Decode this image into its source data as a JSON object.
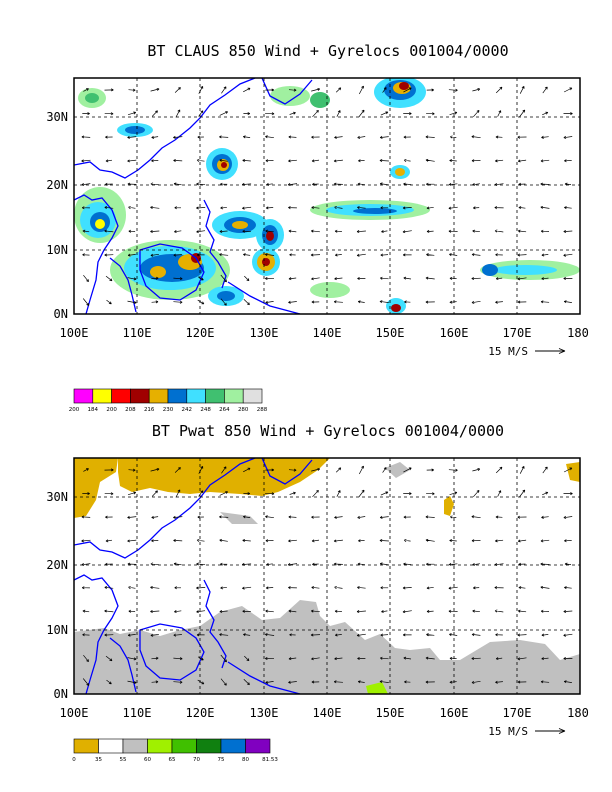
{
  "panels": [
    {
      "id": "claus",
      "title": "BT CLAUS 850 Wind + Gyrelocs 001004/0000",
      "x_ticks": [
        "100E",
        "110E",
        "120E",
        "130E",
        "140E",
        "150E",
        "160E",
        "170E",
        "180"
      ],
      "y_ticks": [
        "0N",
        "10N",
        "20N",
        "30N"
      ],
      "ref_vector_label": "15 M/S",
      "colorbar_labels": [
        "200",
        "184",
        "200",
        "208",
        "216",
        "230",
        "242",
        "248",
        "264",
        "280",
        "288"
      ],
      "colorbar_colors": [
        "#ff00ff",
        "#ffff00",
        "#ff0000",
        "#a00000",
        "#e6b000",
        "#0070d0",
        "#40e0ff",
        "#40c070",
        "#a0f0a0",
        "#e0e0e0"
      ]
    },
    {
      "id": "pwat",
      "title": "BT Pwat 850 Wind + Gyrelocs 001004/0000",
      "x_ticks": [
        "100E",
        "110E",
        "120E",
        "130E",
        "140E",
        "150E",
        "160E",
        "170E",
        "180"
      ],
      "y_ticks": [
        "0N",
        "10N",
        "20N",
        "30N"
      ],
      "ref_vector_label": "15 M/S",
      "colorbar_labels": [
        "0",
        "35",
        "55",
        "60",
        "65",
        "70",
        "75",
        "80",
        "81.53"
      ],
      "colorbar_colors": [
        "#e0b000",
        "#ffffff",
        "#c0c0c0",
        "#a0f000",
        "#40c000",
        "#108010",
        "#0070d0",
        "#8000c0"
      ]
    }
  ],
  "map": {
    "lon_range": [
      100,
      180
    ],
    "lat_range": [
      0,
      36
    ],
    "coast_color": "#0000ff"
  }
}
